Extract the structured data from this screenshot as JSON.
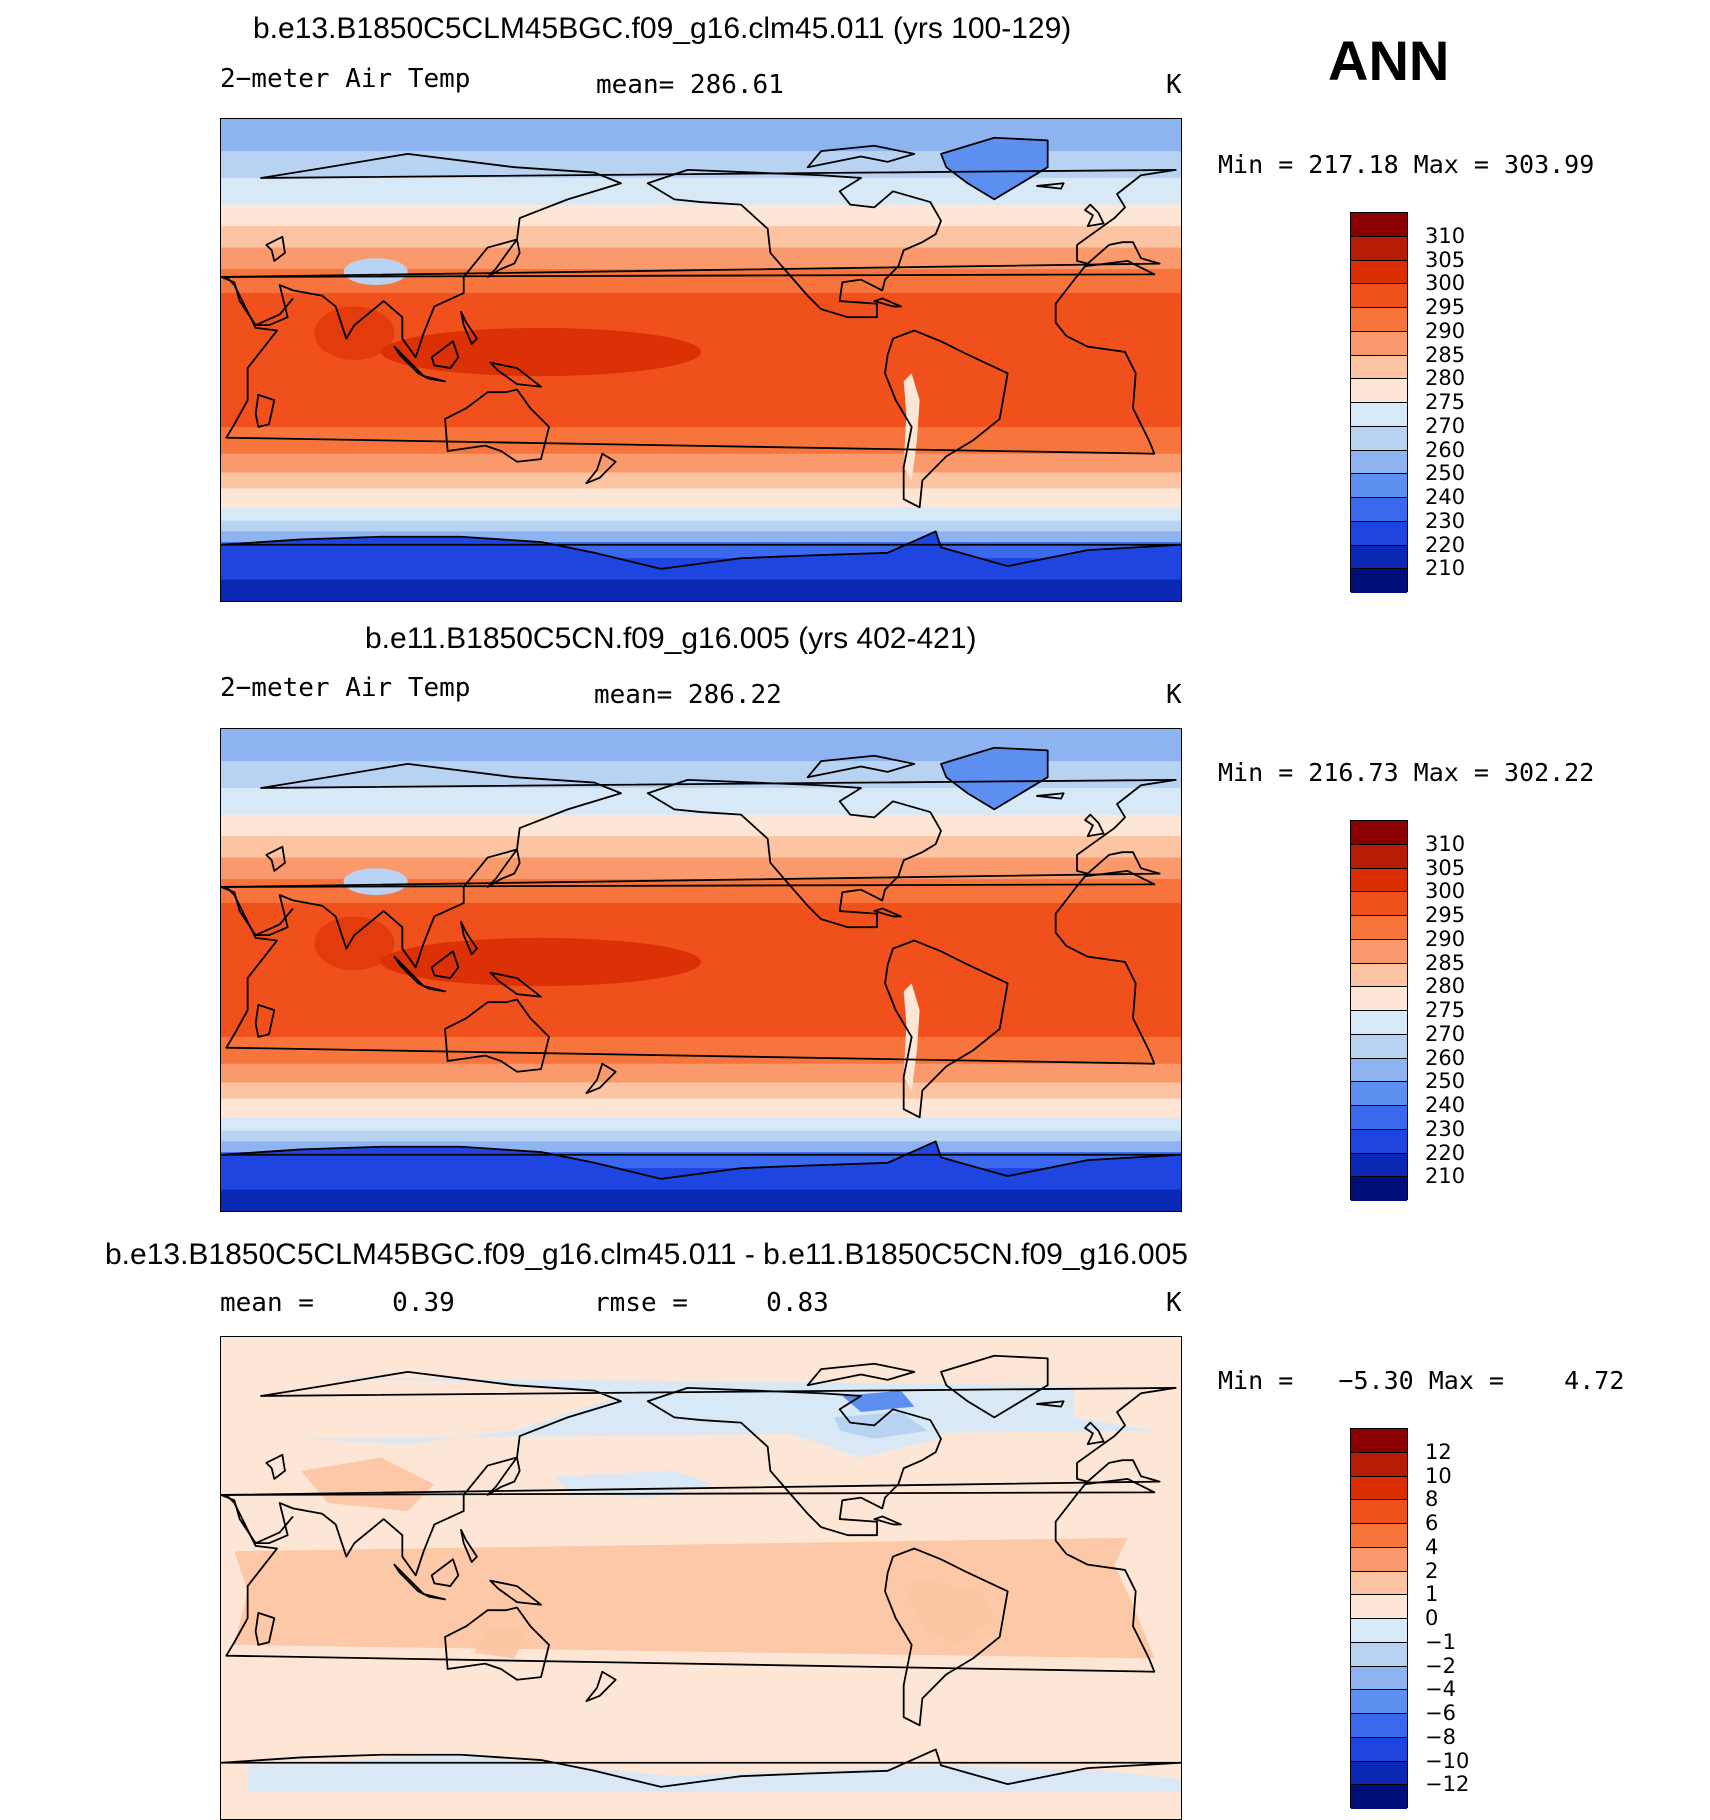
{
  "header": {
    "season": "ANN"
  },
  "panels": [
    {
      "title": "b.e13.B1850C5CLM45BGC.f09_g16.clm45.011 (yrs 100-129)",
      "variable": "2−meter Air Temp",
      "stat_a": "mean= 286.61",
      "stat_b": "",
      "units": "K",
      "minmax": "Min = 217.18 Max = 303.99",
      "colorbar": {
        "labels": [
          "310",
          "305",
          "300",
          "295",
          "290",
          "285",
          "280",
          "275",
          "270",
          "260",
          "250",
          "240",
          "230",
          "220",
          "210"
        ],
        "colors": [
          "#8b0000",
          "#b71c05",
          "#d92d04",
          "#f0501b",
          "#f7743c",
          "#fa9a6c",
          "#fcc4a2",
          "#fde6d6",
          "#d7e8f6",
          "#b8d2f2",
          "#8db3f0",
          "#5d8ff0",
          "#3a69ee",
          "#1e45e0",
          "#0a28b4",
          "#000e7a"
        ]
      },
      "map": {
        "kind": "absolute",
        "lat_bands": [
          {
            "lat_top": 90,
            "lat_bot": 78,
            "color": "#8db3f0"
          },
          {
            "lat_top": 78,
            "lat_bot": 68,
            "color": "#b8d2f2"
          },
          {
            "lat_top": 68,
            "lat_bot": 58,
            "color": "#d7e8f6"
          },
          {
            "lat_top": 58,
            "lat_bot": 50,
            "color": "#fde6d6"
          },
          {
            "lat_top": 50,
            "lat_bot": 42,
            "color": "#fcc4a2"
          },
          {
            "lat_top": 42,
            "lat_bot": 34,
            "color": "#fa9a6c"
          },
          {
            "lat_top": 34,
            "lat_bot": 25,
            "color": "#f7743c"
          },
          {
            "lat_top": 25,
            "lat_bot": -25,
            "color": "#f0501b"
          },
          {
            "lat_top": -25,
            "lat_bot": -35,
            "color": "#f7743c"
          },
          {
            "lat_top": -35,
            "lat_bot": -42,
            "color": "#fa9a6c"
          },
          {
            "lat_top": -42,
            "lat_bot": -48,
            "color": "#fcc4a2"
          },
          {
            "lat_top": -48,
            "lat_bot": -55,
            "color": "#fde6d6"
          },
          {
            "lat_top": -55,
            "lat_bot": -60,
            "color": "#d7e8f6"
          },
          {
            "lat_top": -60,
            "lat_bot": -64,
            "color": "#b8d2f2"
          },
          {
            "lat_top": -64,
            "lat_bot": -68,
            "color": "#8db3f0"
          },
          {
            "lat_top": -68,
            "lat_bot": -74,
            "color": "#3a69ee"
          },
          {
            "lat_top": -74,
            "lat_bot": -90,
            "color": "#1e45e0"
          }
        ],
        "warm_pool_color": "#d92d04",
        "greenland_color": "#5d8ff0",
        "tibet_color": "#b8d2f2"
      }
    },
    {
      "title": "b.e11.B1850C5CN.f09_g16.005 (yrs 402-421)",
      "variable": "2−meter Air Temp",
      "stat_a": "mean= 286.22",
      "stat_b": "",
      "units": "K",
      "minmax": "Min = 216.73 Max = 302.22",
      "colorbar": {
        "labels": [
          "310",
          "305",
          "300",
          "295",
          "290",
          "285",
          "280",
          "275",
          "270",
          "260",
          "250",
          "240",
          "230",
          "220",
          "210"
        ],
        "colors": [
          "#8b0000",
          "#b71c05",
          "#d92d04",
          "#f0501b",
          "#f7743c",
          "#fa9a6c",
          "#fcc4a2",
          "#fde6d6",
          "#d7e8f6",
          "#b8d2f2",
          "#8db3f0",
          "#5d8ff0",
          "#3a69ee",
          "#1e45e0",
          "#0a28b4",
          "#000e7a"
        ]
      },
      "map": {
        "kind": "absolute",
        "lat_bands": [
          {
            "lat_top": 90,
            "lat_bot": 78,
            "color": "#8db3f0"
          },
          {
            "lat_top": 78,
            "lat_bot": 68,
            "color": "#b8d2f2"
          },
          {
            "lat_top": 68,
            "lat_bot": 58,
            "color": "#d7e8f6"
          },
          {
            "lat_top": 58,
            "lat_bot": 50,
            "color": "#fde6d6"
          },
          {
            "lat_top": 50,
            "lat_bot": 42,
            "color": "#fcc4a2"
          },
          {
            "lat_top": 42,
            "lat_bot": 34,
            "color": "#fa9a6c"
          },
          {
            "lat_top": 34,
            "lat_bot": 25,
            "color": "#f7743c"
          },
          {
            "lat_top": 25,
            "lat_bot": -25,
            "color": "#f0501b"
          },
          {
            "lat_top": -25,
            "lat_bot": -35,
            "color": "#f7743c"
          },
          {
            "lat_top": -35,
            "lat_bot": -42,
            "color": "#fa9a6c"
          },
          {
            "lat_top": -42,
            "lat_bot": -48,
            "color": "#fcc4a2"
          },
          {
            "lat_top": -48,
            "lat_bot": -55,
            "color": "#fde6d6"
          },
          {
            "lat_top": -55,
            "lat_bot": -60,
            "color": "#d7e8f6"
          },
          {
            "lat_top": -60,
            "lat_bot": -64,
            "color": "#b8d2f2"
          },
          {
            "lat_top": -64,
            "lat_bot": -68,
            "color": "#8db3f0"
          },
          {
            "lat_top": -68,
            "lat_bot": -74,
            "color": "#3a69ee"
          },
          {
            "lat_top": -74,
            "lat_bot": -90,
            "color": "#1e45e0"
          }
        ],
        "warm_pool_color": "#d92d04",
        "greenland_color": "#5d8ff0",
        "tibet_color": "#b8d2f2"
      }
    },
    {
      "title": "b.e13.B1850C5CLM45BGC.f09_g16.clm45.011 - b.e11.B1850C5CN.f09_g16.005",
      "variable": "mean =     0.39",
      "stat_a": "rmse =     0.83",
      "stat_b": "",
      "units": "K",
      "minmax": "Min =   −5.30 Max =    4.72",
      "colorbar": {
        "labels": [
          "12",
          "10",
          "8",
          "6",
          "4",
          "2",
          "1",
          "0",
          "−1",
          "−2",
          "−4",
          "−6",
          "−8",
          "−10",
          "−12"
        ],
        "colors": [
          "#8b0000",
          "#b71c05",
          "#d92d04",
          "#f0501b",
          "#f7743c",
          "#fa9a6c",
          "#fcc4a2",
          "#fde6d6",
          "#d7e8f6",
          "#b8d2f2",
          "#8db3f0",
          "#5d8ff0",
          "#3a69ee",
          "#1e45e0",
          "#0a28b4",
          "#000e7a"
        ]
      },
      "map": {
        "kind": "difference",
        "background": "#fde6d6",
        "land_warm_color": "#fcc4a2",
        "cool_color": "#d7e8f6",
        "cooler_color": "#b8d2f2",
        "coolest_color": "#5d8ff0"
      }
    }
  ]
}
